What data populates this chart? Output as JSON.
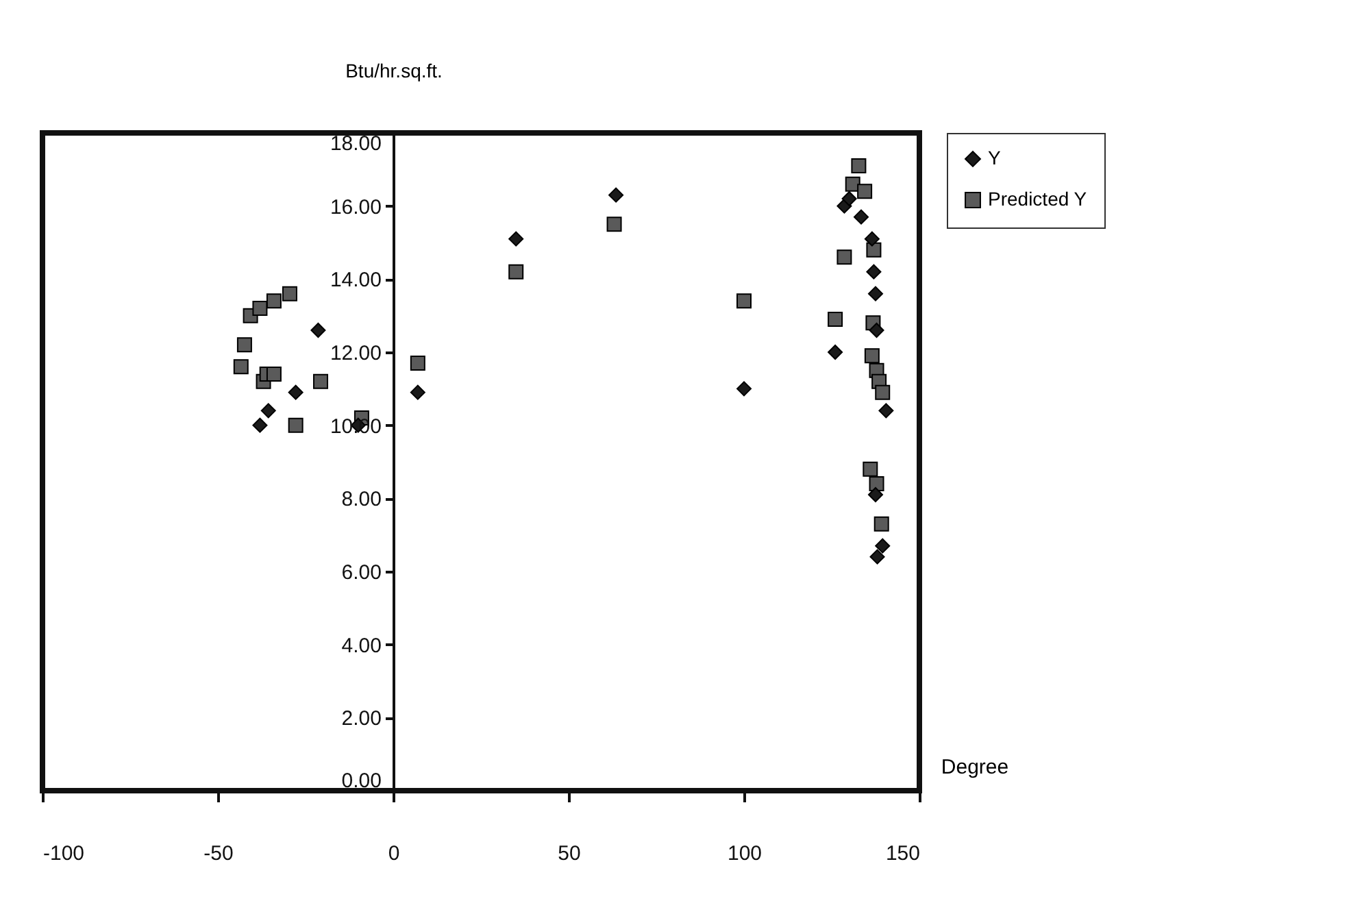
{
  "chart_data": {
    "type": "scatter",
    "xlabel": "Degree",
    "ylabel": "Btu/hr.sq.ft.",
    "xlim": [
      -100,
      150
    ],
    "ylim": [
      0,
      18
    ],
    "xticks": [
      -100,
      -50,
      0,
      50,
      100,
      150
    ],
    "yticks": [
      {
        "value": 0,
        "label": "0.00"
      },
      {
        "value": 2,
        "label": "2.00"
      },
      {
        "value": 4,
        "label": "4.00"
      },
      {
        "value": 6,
        "label": "6.00"
      },
      {
        "value": 8,
        "label": "8.00"
      },
      {
        "value": 10,
        "label": "10.00"
      },
      {
        "value": 12,
        "label": "12.00"
      },
      {
        "value": 14,
        "label": "14.00"
      },
      {
        "value": 16,
        "label": "16.00"
      },
      {
        "value": 18,
        "label": "18.00"
      }
    ],
    "grid": false,
    "legend": "right",
    "series": [
      {
        "name": "Y",
        "color": "#1a1a1a",
        "marker": "diamond",
        "x": [
          -38,
          -35.6,
          -27.8,
          -21.4,
          -10,
          7,
          35,
          63.5,
          100,
          126,
          128.6,
          130,
          133.4,
          136.5,
          137,
          137.5,
          137.8,
          140.5,
          137.5,
          138,
          139.5
        ],
        "values": [
          10.0,
          10.4,
          10.9,
          12.6,
          10.0,
          10.9,
          15.1,
          16.3,
          11.0,
          12.0,
          16.0,
          16.2,
          15.7,
          15.1,
          14.2,
          13.6,
          12.6,
          10.4,
          8.1,
          6.4,
          6.7
        ]
      },
      {
        "name": "Predicted Y",
        "color": "#5a5a5a",
        "marker": "square",
        "x": [
          -43.4,
          -42.4,
          -40.7,
          -38,
          -34,
          -29.5,
          -37,
          -36,
          -34,
          -27.8,
          -20.7,
          -9,
          7,
          35,
          63,
          100,
          126,
          128.6,
          132.7,
          131,
          134.4,
          137,
          136.8,
          136.5,
          137.8,
          138.5,
          139.5,
          136,
          137.8,
          139.2
        ],
        "values": [
          11.6,
          12.2,
          13.0,
          13.2,
          13.4,
          13.6,
          11.2,
          11.4,
          11.4,
          10.0,
          11.2,
          10.2,
          11.7,
          14.2,
          15.5,
          13.4,
          12.9,
          14.6,
          17.1,
          16.6,
          16.4,
          14.8,
          12.8,
          11.9,
          11.5,
          11.2,
          10.9,
          8.8,
          8.4,
          7.3
        ]
      }
    ]
  }
}
